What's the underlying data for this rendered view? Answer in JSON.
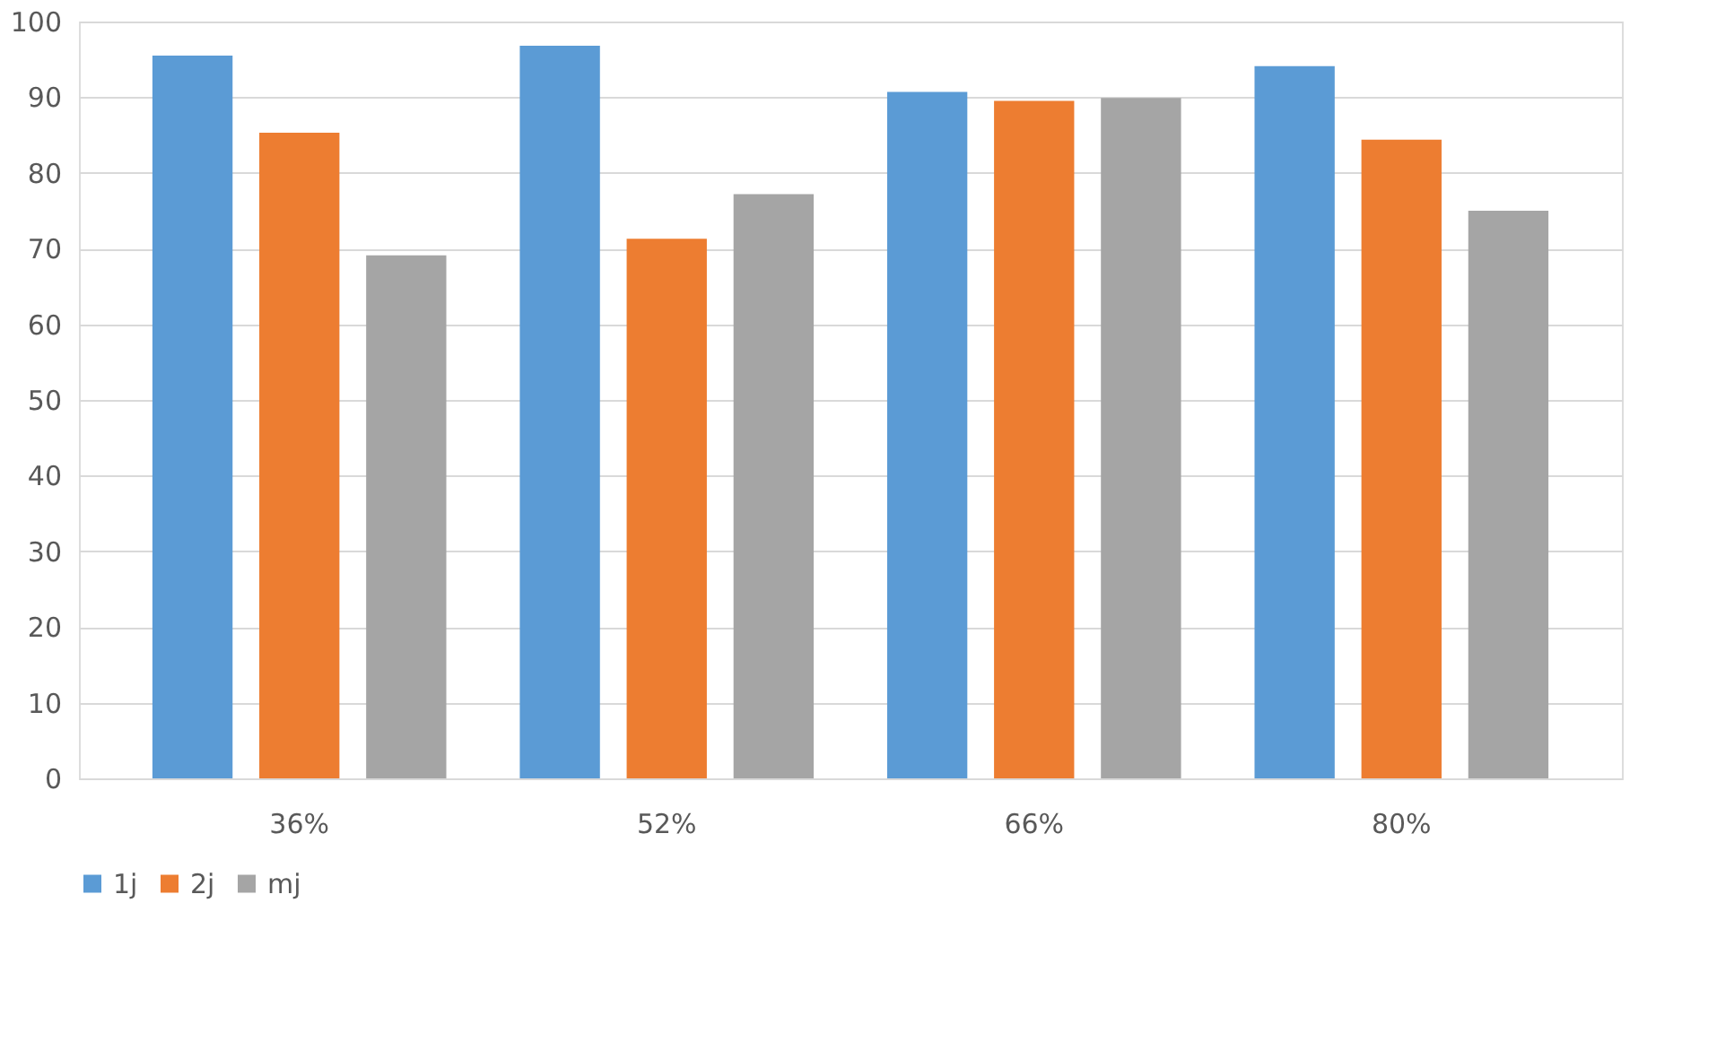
{
  "chart_data": {
    "type": "bar",
    "categories": [
      "36%",
      "52%",
      "66%",
      "80%"
    ],
    "series": [
      {
        "name": "1j",
        "color": "#5b9bd5",
        "values": [
          95.5,
          96.8,
          90.7,
          94.1
        ]
      },
      {
        "name": "2j",
        "color": "#ed7d31",
        "values": [
          85.3,
          71.3,
          89.5,
          84.4
        ]
      },
      {
        "name": "mj",
        "color": "#a5a5a5",
        "values": [
          69.1,
          77.2,
          89.9,
          75.0
        ]
      }
    ],
    "ylim": [
      0,
      100
    ],
    "yticks": [
      0,
      10,
      20,
      30,
      40,
      50,
      60,
      70,
      80,
      90,
      100
    ],
    "grid": "y",
    "legend": "bottom"
  }
}
